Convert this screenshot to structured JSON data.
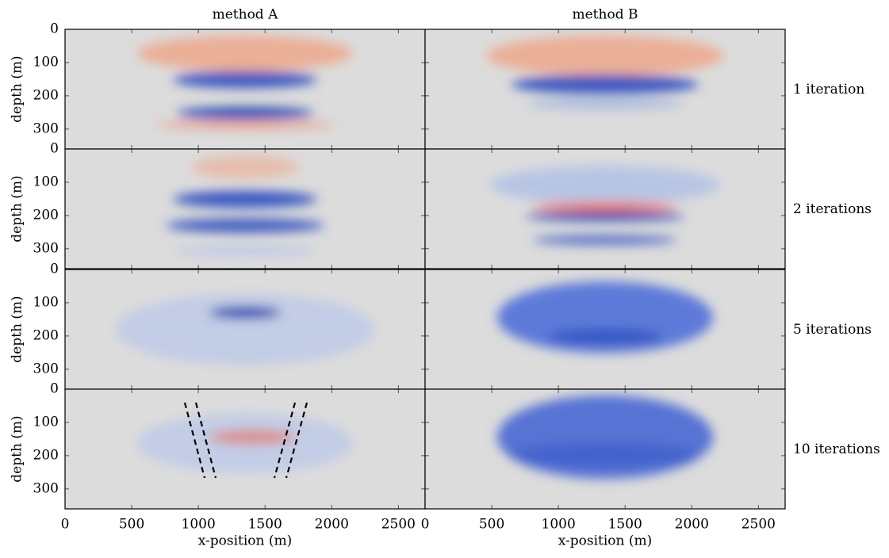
{
  "chart_data": [
    {
      "type": "heatmap",
      "title": "method A",
      "ylabel": "depth (m)",
      "xlim": [
        0,
        2700
      ],
      "ylim": [
        0,
        360
      ],
      "xticks": [
        0,
        500,
        1000,
        1500,
        2000,
        2500
      ],
      "yticks": [
        0,
        100,
        200,
        300
      ]
    },
    {
      "type": "heatmap",
      "title": "method B",
      "row_label": "1 iteration",
      "xlim": [
        0,
        2700
      ],
      "ylim": [
        0,
        360
      ],
      "xticks": [
        0,
        500,
        1000,
        1500,
        2000,
        2500
      ],
      "yticks": [
        0,
        100,
        200,
        300
      ]
    },
    {
      "type": "heatmap",
      "ylabel": "depth (m)",
      "xlim": [
        0,
        2700
      ],
      "ylim": [
        0,
        360
      ],
      "xticks": [
        0,
        500,
        1000,
        1500,
        2000,
        2500
      ],
      "yticks": [
        0,
        100,
        200,
        300
      ]
    },
    {
      "type": "heatmap",
      "row_label": "2 iterations",
      "xlim": [
        0,
        2700
      ],
      "ylim": [
        0,
        360
      ],
      "xticks": [
        0,
        500,
        1000,
        1500,
        2000,
        2500
      ],
      "yticks": [
        0,
        100,
        200,
        300
      ]
    },
    {
      "type": "heatmap",
      "ylabel": "depth (m)",
      "xlim": [
        0,
        2700
      ],
      "ylim": [
        0,
        360
      ],
      "xticks": [
        0,
        500,
        1000,
        1500,
        2000,
        2500
      ],
      "yticks": [
        0,
        100,
        200,
        300
      ]
    },
    {
      "type": "heatmap",
      "row_label": "5 iterations",
      "xlim": [
        0,
        2700
      ],
      "ylim": [
        0,
        360
      ],
      "xticks": [
        0,
        500,
        1000,
        1500,
        2000,
        2500
      ],
      "yticks": [
        0,
        100,
        200,
        300
      ]
    },
    {
      "type": "heatmap",
      "ylabel": "depth (m)",
      "xlabel": "x-position (m)",
      "xlim": [
        0,
        2700
      ],
      "ylim": [
        0,
        360
      ],
      "xticks": [
        0,
        500,
        1000,
        1500,
        2000,
        2500
      ],
      "yticks": [
        0,
        100,
        200,
        300
      ]
    },
    {
      "type": "heatmap",
      "row_label": "10 iterations",
      "xlabel": "x-position (m)",
      "xlim": [
        0,
        2700
      ],
      "ylim": [
        0,
        360
      ],
      "xticks": [
        0,
        500,
        1000,
        1500,
        2000,
        2500
      ],
      "yticks": [
        0,
        100,
        200,
        300
      ]
    }
  ]
}
